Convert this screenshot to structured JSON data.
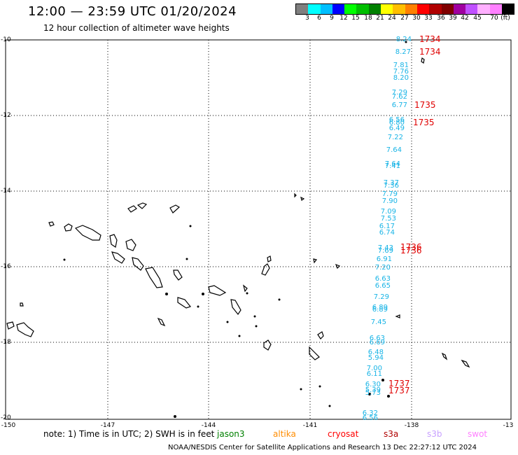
{
  "title": "12:00 — 23:59 UTC 01/20/2024",
  "subtitle": "12 hour collection of altimeter wave heights",
  "colorbar": {
    "colors": [
      "#7f7f7f",
      "#00ffff",
      "#00bfff",
      "#0000ff",
      "#00ff00",
      "#00bf00",
      "#008000",
      "#ffff00",
      "#ffbf00",
      "#ff8000",
      "#ff0000",
      "#b00000",
      "#800000",
      "#a000a0",
      "#c050ff",
      "#ffb0ff",
      "#ff80ff",
      "#000000"
    ],
    "labels": [
      "3",
      "6",
      "9",
      "12",
      "15",
      "18",
      "21",
      "24",
      "27",
      "30",
      "33",
      "36",
      "39",
      "42",
      "45",
      "70",
      "(ft)"
    ]
  },
  "axes": {
    "y_ticks": [
      "-10",
      "-12",
      "-14",
      "-16",
      "-18",
      "-20"
    ],
    "x_ticks": [
      "-150",
      "-147",
      "-144",
      "-141",
      "-138",
      "-13"
    ]
  },
  "observations": [
    "8.24",
    "8.27",
    "7.81",
    "7.76",
    "8.20",
    "7.29",
    "7.62",
    "6.77",
    "6.56",
    "6.80",
    "6.49",
    "7.22",
    "7.64",
    "7.64",
    "7.41",
    "7.37",
    "7.36",
    "7.79",
    "7.90",
    "7.09",
    "7.53",
    "6.17",
    "6.74",
    "7.43",
    "7.69",
    "6.91",
    "7.20",
    "6.63",
    "6.65",
    "7.29",
    "6.89",
    "6.89",
    "7.45",
    "6.63",
    "6.69",
    "6.48",
    "5.94",
    "7.00",
    "6.11",
    "6.30",
    "5.39",
    "5.73",
    "6.32",
    "6.56"
  ],
  "tracks": [
    "1734",
    "1734",
    "1735",
    "1735",
    "1736",
    "1736",
    "1737",
    "1737"
  ],
  "note": "note: 1) Time is in UTC; 2) SWH is in feet",
  "satellites": [
    {
      "name": "jason3",
      "color": "#008000"
    },
    {
      "name": "altika",
      "color": "#ff8c00"
    },
    {
      "name": "cryosat",
      "color": "#ff0000"
    },
    {
      "name": "s3a",
      "color": "#b00000"
    },
    {
      "name": "s3b",
      "color": "#c8a0ff"
    },
    {
      "name": "swot",
      "color": "#ff80ff"
    }
  ],
  "credit": "NOAA/NESDIS Center for Satellite Applications and Research   13 Dec 22:27:12 UTC 2024"
}
